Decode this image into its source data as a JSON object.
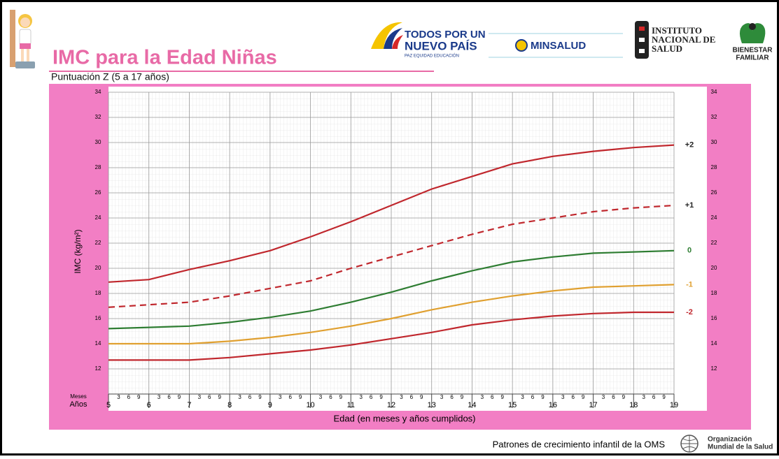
{
  "header": {
    "title": "IMC para la Edad Niñas",
    "subtitle": "Puntuación Z (5 a 17 años)",
    "logos": {
      "todos": [
        "TODOS POR UN",
        "NUEVO PAÍS",
        "PAZ  EQUIDAD  EDUCACIÓN"
      ],
      "minsalud": "MINSALUD",
      "ins": [
        "INSTITUTO",
        "NACIONAL DE",
        "SALUD"
      ],
      "bienestar": [
        "BIENESTAR",
        "FAMILIAR"
      ]
    }
  },
  "chart_data": {
    "type": "line",
    "y_label": "IMC (kg/m²)",
    "x_label": "Edad (en meses y años cumplidos)",
    "row_labels": [
      "Meses",
      "Años"
    ],
    "month_labels": [
      "3",
      "6",
      "9"
    ],
    "x": [
      5,
      6,
      7,
      8,
      9,
      10,
      11,
      12,
      13,
      14,
      15,
      16,
      17,
      18,
      19
    ],
    "xlim": [
      5,
      19
    ],
    "xticks": [
      5,
      6,
      7,
      8,
      9,
      10,
      11,
      12,
      13,
      14,
      15,
      16,
      17,
      18,
      19
    ],
    "ylim": [
      10,
      34
    ],
    "yticks": [
      12,
      14,
      16,
      18,
      20,
      22,
      24,
      26,
      28,
      30,
      32,
      34
    ],
    "grid": true,
    "series": [
      {
        "name": "+2",
        "color": "#c0272d",
        "label_color": "#222222",
        "dash": false,
        "values": [
          18.9,
          19.1,
          19.9,
          20.6,
          21.4,
          22.5,
          23.7,
          25.0,
          26.3,
          27.3,
          28.3,
          28.9,
          29.3,
          29.6,
          29.8
        ]
      },
      {
        "name": "+1",
        "color": "#c0272d",
        "label_color": "#222222",
        "dash": true,
        "values": [
          16.9,
          17.1,
          17.3,
          17.8,
          18.4,
          19.0,
          20.0,
          20.9,
          21.8,
          22.7,
          23.5,
          24.0,
          24.5,
          24.8,
          25.0
        ]
      },
      {
        "name": "0",
        "color": "#2e7d32",
        "label_color": "#2e7d32",
        "dash": false,
        "values": [
          15.2,
          15.3,
          15.4,
          15.7,
          16.1,
          16.6,
          17.3,
          18.1,
          19.0,
          19.8,
          20.5,
          20.9,
          21.2,
          21.3,
          21.4
        ]
      },
      {
        "name": "-1",
        "color": "#e0a030",
        "label_color": "#e0a030",
        "dash": false,
        "values": [
          14.0,
          14.0,
          14.0,
          14.2,
          14.5,
          14.9,
          15.4,
          16.0,
          16.7,
          17.3,
          17.8,
          18.2,
          18.5,
          18.6,
          18.7
        ]
      },
      {
        "name": "-2",
        "color": "#c0272d",
        "label_color": "#c0272d",
        "dash": false,
        "values": [
          12.7,
          12.7,
          12.7,
          12.9,
          13.2,
          13.5,
          13.9,
          14.4,
          14.9,
          15.5,
          15.9,
          16.2,
          16.4,
          16.5,
          16.5
        ]
      }
    ]
  },
  "footer": {
    "text": "Patrones de crecimiento infantil de la OMS",
    "oms": [
      "Organización",
      "Mundial de la Salud"
    ]
  }
}
